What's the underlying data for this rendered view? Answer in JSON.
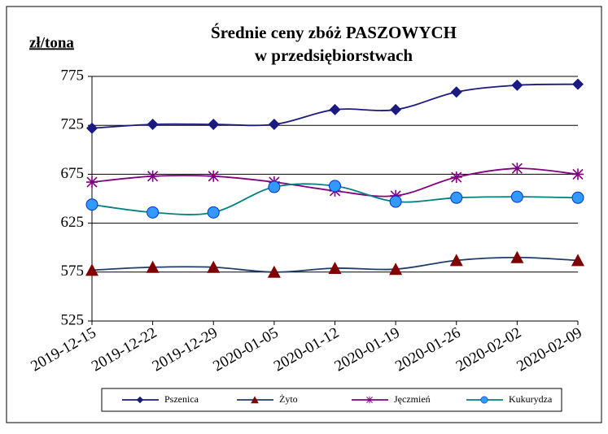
{
  "chart_data": {
    "type": "line",
    "title": [
      "Średnie ceny zbóż PASZOWYCH",
      "w przedsiębiorstwach"
    ],
    "y_label": "zł/tona",
    "categories": [
      "2019-12-15",
      "2019-12-22",
      "2019-12-29",
      "2020-01-05",
      "2020-01-12",
      "2020-01-19",
      "2020-01-26",
      "2020-02-02",
      "2020-02-09"
    ],
    "series": [
      {
        "name": "Pszenica",
        "color": "#1a1a80",
        "marker_color": "#1a1a80",
        "marker": "diamond",
        "values": [
          722,
          726,
          726,
          726,
          741,
          741,
          759,
          766,
          767
        ]
      },
      {
        "name": "Żyto",
        "color": "#1f3d6b",
        "marker_color": "#800000",
        "marker": "triangle",
        "values": [
          577,
          580,
          580,
          575,
          579,
          578,
          587,
          590,
          587
        ]
      },
      {
        "name": "Jęczmień",
        "color": "#800080",
        "marker_color": "#800080",
        "marker": "star",
        "values": [
          667,
          673,
          673,
          667,
          658,
          653,
          672,
          681,
          675
        ]
      },
      {
        "name": "Kukurydza",
        "color": "#008080",
        "marker_color": "#3399ff",
        "marker": "circle",
        "values": [
          644,
          636,
          636,
          662,
          663,
          647,
          651,
          652,
          651
        ]
      }
    ],
    "ylim": [
      525,
      775
    ],
    "yticks": [
      525,
      575,
      625,
      675,
      725,
      775
    ],
    "grid": true,
    "legend": "bottom"
  }
}
